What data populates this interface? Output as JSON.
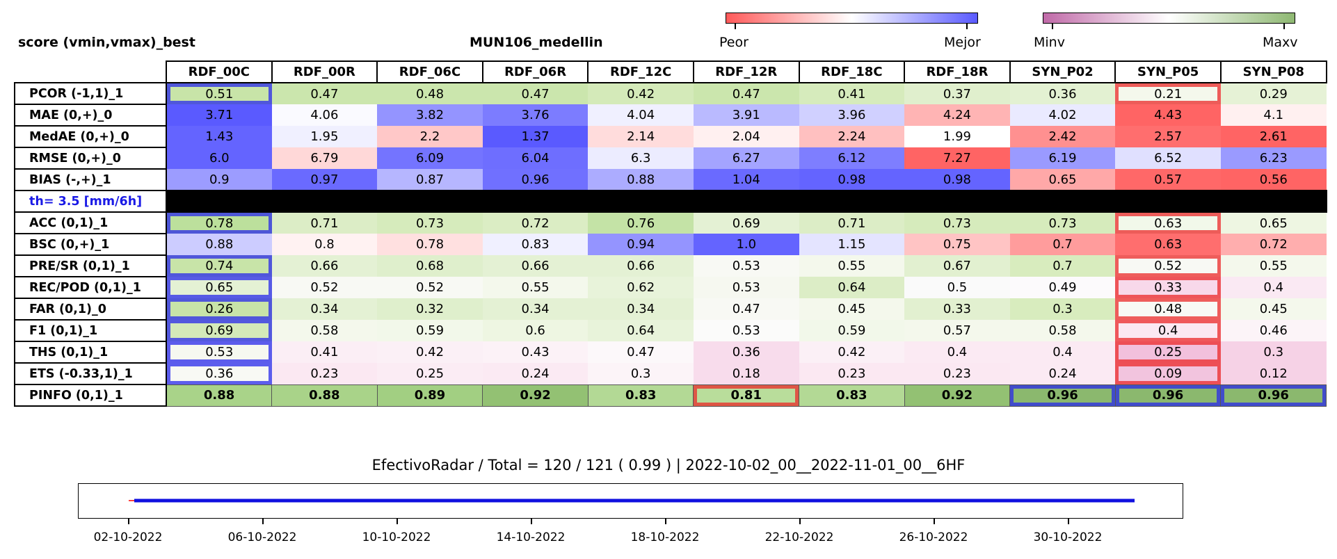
{
  "header": {
    "left_title": "score (vmin,vmax)_best",
    "center_title": "MUN106_medellin"
  },
  "legend": {
    "bar1": {
      "low_label": "Peor",
      "high_label": "Mejor",
      "low_color": "#ff5a5a",
      "mid_color": "#ffffff",
      "high_color": "#5a5aff"
    },
    "bar2": {
      "low_label": "Minv",
      "high_label": "Maxv",
      "low_color": "#c06aa8",
      "mid_color": "#ffffff",
      "high_color": "#8eb872"
    }
  },
  "chart_data": {
    "type": "heatmap",
    "columns": [
      "RDF_00C",
      "RDF_00R",
      "RDF_06C",
      "RDF_06R",
      "RDF_12C",
      "RDF_12R",
      "RDF_18C",
      "RDF_18R",
      "SYN_P02",
      "SYN_P05",
      "SYN_P08"
    ],
    "rows": [
      {
        "label": "PCOR (-1,1)_1",
        "scale": "green",
        "values": [
          "0.51",
          "0.47",
          "0.48",
          "0.47",
          "0.42",
          "0.47",
          "0.41",
          "0.37",
          "0.36",
          "0.21",
          "0.29"
        ],
        "best": [
          0
        ],
        "worst": [
          9
        ]
      },
      {
        "label": "MAE (0,+)_0",
        "scale": "rb",
        "values": [
          "3.71",
          "4.06",
          "3.82",
          "3.76",
          "4.04",
          "3.91",
          "3.96",
          "4.24",
          "4.02",
          "4.43",
          "4.1"
        ],
        "best": [],
        "worst": []
      },
      {
        "label": "MedAE (0,+)_0",
        "scale": "rb",
        "values": [
          "1.43",
          "1.95",
          "2.2",
          "1.37",
          "2.14",
          "2.04",
          "2.24",
          "1.99",
          "2.42",
          "2.57",
          "2.61"
        ],
        "best": [],
        "worst": []
      },
      {
        "label": "RMSE (0,+)_0",
        "scale": "rb",
        "values": [
          "6.0",
          "6.79",
          "6.09",
          "6.04",
          "6.3",
          "6.27",
          "6.12",
          "7.27",
          "6.19",
          "6.52",
          "6.23"
        ],
        "best": [],
        "worst": []
      },
      {
        "label": "BIAS (-,+)_1",
        "scale": "rb",
        "values": [
          "0.9",
          "0.97",
          "0.87",
          "0.96",
          "0.88",
          "1.04",
          "0.98",
          "0.98",
          "0.65",
          "0.57",
          "0.56"
        ],
        "best": [],
        "worst": []
      },
      {
        "label": "th= 3.5 [mm/6h]",
        "scale": "separator",
        "values": [],
        "best": [],
        "worst": []
      },
      {
        "label": "ACC (0,1)_1",
        "scale": "green",
        "values": [
          "0.78",
          "0.71",
          "0.73",
          "0.72",
          "0.76",
          "0.69",
          "0.71",
          "0.73",
          "0.73",
          "0.63",
          "0.65"
        ],
        "best": [
          0
        ],
        "worst": [
          9
        ]
      },
      {
        "label": "BSC (0,+)_1",
        "scale": "rb",
        "values": [
          "0.88",
          "0.8",
          "0.78",
          "0.83",
          "0.94",
          "1.0",
          "1.15",
          "0.75",
          "0.7",
          "0.63",
          "0.72"
        ],
        "best": [],
        "worst": []
      },
      {
        "label": "PRE/SR (0,1)_1",
        "scale": "green",
        "values": [
          "0.74",
          "0.66",
          "0.68",
          "0.66",
          "0.66",
          "0.53",
          "0.55",
          "0.67",
          "0.7",
          "0.52",
          "0.55"
        ],
        "best": [
          0
        ],
        "worst": [
          9
        ]
      },
      {
        "label": "REC/POD (0,1)_1",
        "scale": "green",
        "values": [
          "0.65",
          "0.52",
          "0.52",
          "0.55",
          "0.62",
          "0.53",
          "0.64",
          "0.5",
          "0.49",
          "0.33",
          "0.4"
        ],
        "best": [
          0
        ],
        "worst": [
          9
        ]
      },
      {
        "label": "FAR (0,1)_0",
        "scale": "green",
        "values": [
          "0.26",
          "0.34",
          "0.32",
          "0.34",
          "0.34",
          "0.47",
          "0.45",
          "0.33",
          "0.3",
          "0.48",
          "0.45"
        ],
        "best": [
          0
        ],
        "worst": [
          9
        ]
      },
      {
        "label": "F1 (0,1)_1",
        "scale": "green",
        "values": [
          "0.69",
          "0.58",
          "0.59",
          "0.6",
          "0.64",
          "0.53",
          "0.59",
          "0.57",
          "0.58",
          "0.4",
          "0.46"
        ],
        "best": [
          0
        ],
        "worst": [
          9
        ]
      },
      {
        "label": "THS (0,1)_1",
        "scale": "green",
        "values": [
          "0.53",
          "0.41",
          "0.42",
          "0.43",
          "0.47",
          "0.36",
          "0.42",
          "0.4",
          "0.4",
          "0.25",
          "0.3"
        ],
        "best": [
          0
        ],
        "worst": [
          9
        ]
      },
      {
        "label": "ETS (-0.33,1)_1",
        "scale": "green",
        "values": [
          "0.36",
          "0.23",
          "0.25",
          "0.24",
          "0.3",
          "0.18",
          "0.23",
          "0.23",
          "0.24",
          "0.09",
          "0.12"
        ],
        "best": [
          0
        ],
        "worst": [
          9
        ]
      },
      {
        "label": "PINFO (0,1)_1",
        "scale": "green",
        "values": [
          "0.88",
          "0.88",
          "0.89",
          "0.92",
          "0.83",
          "0.81",
          "0.83",
          "0.92",
          "0.96",
          "0.96",
          "0.96"
        ],
        "best": [
          8,
          9,
          10
        ],
        "worst": [
          5
        ]
      }
    ],
    "cell_colors": [
      [
        "#c8e4a8",
        "#cbe6ad",
        "#cbe6ad",
        "#cbe6ad",
        "#d4eab9",
        "#cbe6ad",
        "#d6ebbc",
        "#e0efcd",
        "#e3f1d2",
        "#f4f8ec",
        "#e6f2d6"
      ],
      [
        "#5a5aff",
        "#fafaff",
        "#9494ff",
        "#7c7cff",
        "#f0f0ff",
        "#babaff",
        "#d0d0ff",
        "#ffb4b4",
        "#eaeaff",
        "#ff6464",
        "#fff0f0"
      ],
      [
        "#6464ff",
        "#f0f0ff",
        "#ffc8c8",
        "#5a5aff",
        "#ffdcdc",
        "#fff0f0",
        "#ffc0c0",
        "#ffffff",
        "#ff9090",
        "#ff6e6e",
        "#ff6464"
      ],
      [
        "#6464ff",
        "#ffd8d8",
        "#7474ff",
        "#6e6eff",
        "#ececff",
        "#a4a4ff",
        "#7e7eff",
        "#ff6464",
        "#9a9aff",
        "#e0e0ff",
        "#9a9aff"
      ],
      [
        "#9c9cff",
        "#6a6aff",
        "#b6b6ff",
        "#7070ff",
        "#acacff",
        "#6a6aff",
        "#6464ff",
        "#6464ff",
        "#ffa8a8",
        "#ff6868",
        "#ff6464"
      ],
      [],
      [
        "#bce09c",
        "#dcedc6",
        "#d6ebbc",
        "#dbedc4",
        "#c4e3a6",
        "#e4f1d4",
        "#dcedc6",
        "#d6ebbc",
        "#d6ebbc",
        "#f2f8ea",
        "#eef6e2"
      ],
      [
        "#ccccff",
        "#fff2f2",
        "#ffe0e0",
        "#f0f0ff",
        "#9494ff",
        "#6464ff",
        "#e4e4ff",
        "#ffc4c4",
        "#ff9c9c",
        "#ff6e6e",
        "#ffaeae"
      ],
      [
        "#c8e4a8",
        "#e4f1d4",
        "#dfefcc",
        "#e4f1d4",
        "#e4f1d4",
        "#f8f9f4",
        "#f4f8ec",
        "#e2f0d0",
        "#d8ecbe",
        "#f8f9f4",
        "#f4f8ec"
      ],
      [
        "#e4f1d4",
        "#f8f9f4",
        "#f8f9f4",
        "#f4f8ec",
        "#e8f3da",
        "#f6f8f0",
        "#dcedc6",
        "#fafafa",
        "#fcfafc",
        "#f8d8ea",
        "#fae9f3"
      ],
      [
        "#c8e4a8",
        "#e4f1d4",
        "#dfefcc",
        "#e4f1d4",
        "#e4f1d4",
        "#f8f9f4",
        "#f4f8ec",
        "#e2f0d0",
        "#d8ecbe",
        "#f8f9f4",
        "#f4f8ec"
      ],
      [
        "#d4eab9",
        "#f4f8ec",
        "#f2f8ea",
        "#eef6e2",
        "#e8f3da",
        "#fbfbfa",
        "#f2f8ea",
        "#f4f8ec",
        "#f4f8ec",
        "#fbe8f2",
        "#fcf4f8"
      ],
      [
        "#f6f8f0",
        "#fbeef5",
        "#fbf0f6",
        "#fcf2f7",
        "#fcf8fa",
        "#f8dcec",
        "#fbf0f6",
        "#fbeaf3",
        "#fbeaf3",
        "#f2c0dc",
        "#f6d2e6"
      ],
      [
        "#f8f9f4",
        "#fbe8f2",
        "#fbecf4",
        "#fbeaf3",
        "#fcf4f8",
        "#f8dcec",
        "#fbe8f2",
        "#fbe8f2",
        "#fbeaf3",
        "#f2c4de",
        "#f6d2e6"
      ],
      [
        "#a9d389",
        "#a9d389",
        "#a2cf82",
        "#93c173",
        "#b3d995",
        "#b9dd9b",
        "#b3d995",
        "#93c173",
        "#8bb86e",
        "#8bb86e",
        "#8bb86e"
      ]
    ],
    "x_tick_labels": [
      "02-10-2022",
      "06-10-2022",
      "10-10-2022",
      "14-10-2022",
      "18-10-2022",
      "22-10-2022",
      "26-10-2022",
      "30-10-2022"
    ],
    "timeline": {
      "start": "02-10-2022",
      "end": "31-10-2022",
      "effective_color": "#1010e0",
      "missing_color": "#ff4040"
    }
  },
  "footer": {
    "summary": "EfectivoRadar / Total  =  120 / 121 ( 0.99 ) | 2022-10-02_00__2022-11-01_00__6HF"
  }
}
